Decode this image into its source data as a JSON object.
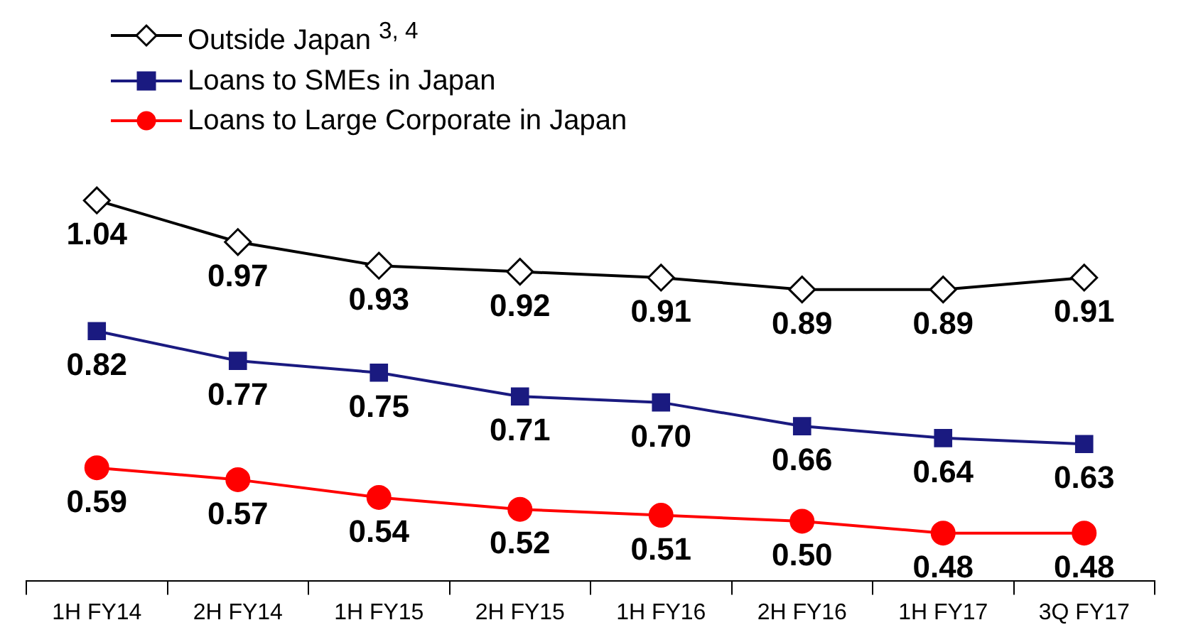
{
  "chart_data": {
    "type": "line",
    "categories": [
      "1H FY14",
      "2H FY14",
      "1H FY15",
      "2H FY15",
      "1H FY16",
      "2H FY16",
      "1H FY17",
      "3Q FY17"
    ],
    "series": [
      {
        "name": "Outside Japan $^{3, 4}$",
        "color": "#000000",
        "marker": "diamond",
        "values": [
          1.04,
          0.97,
          0.93,
          0.92,
          0.91,
          0.89,
          0.89,
          0.91
        ],
        "value_labels": [
          "1.04",
          "0.97",
          "0.93",
          "0.92",
          "0.91",
          "0.89",
          "0.89",
          "0.91"
        ]
      },
      {
        "name": "Loans to SMEs in Japan",
        "color": "#1a1a80",
        "marker": "square",
        "values": [
          0.82,
          0.77,
          0.75,
          0.71,
          0.7,
          0.66,
          0.64,
          0.63
        ],
        "value_labels": [
          "0.82",
          "0.77",
          "0.75",
          "0.71",
          "0.70",
          "0.66",
          "0.64",
          "0.63"
        ]
      },
      {
        "name": "Loans to Large Corporate in Japan",
        "color": "#ff0000",
        "marker": "circle",
        "values": [
          0.59,
          0.57,
          0.54,
          0.52,
          0.51,
          0.5,
          0.48,
          0.48
        ],
        "value_labels": [
          "0.59",
          "0.57",
          "0.54",
          "0.52",
          "0.51",
          "0.50",
          "0.48",
          "0.48"
        ]
      }
    ],
    "tick_labels": "x",
    "legend": "top left",
    "line_style": "solid"
  }
}
